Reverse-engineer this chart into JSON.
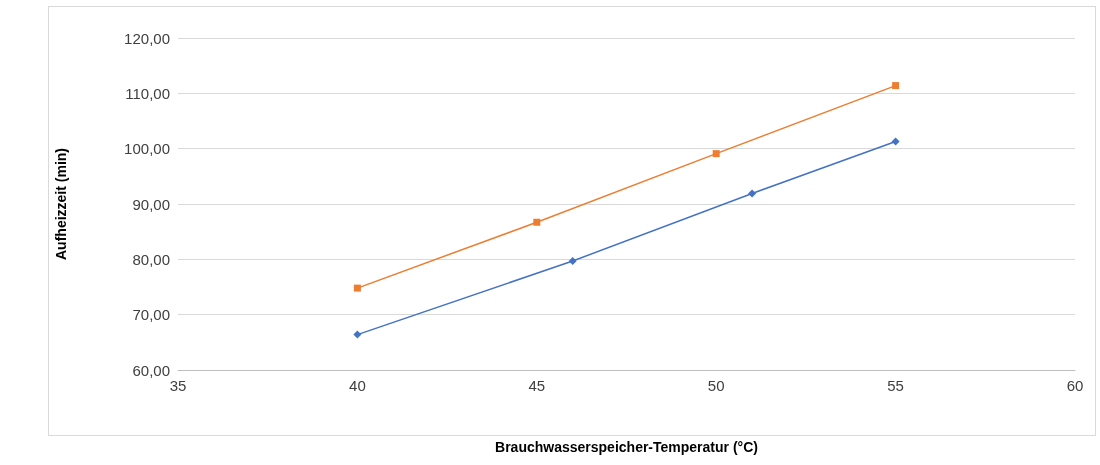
{
  "chart_data": {
    "type": "line",
    "xlabel": "Brauchwasserspeicher-Temperatur (°C)",
    "ylabel": "Aufheizzeit (min)",
    "xlim": [
      35,
      60
    ],
    "xticks": [
      35,
      40,
      45,
      50,
      55,
      60
    ],
    "ylim": [
      60,
      120
    ],
    "yticks": [
      {
        "value": 60,
        "label": "60,00"
      },
      {
        "value": 70,
        "label": "70,00"
      },
      {
        "value": 80,
        "label": "80,00"
      },
      {
        "value": 90,
        "label": "90,00"
      },
      {
        "value": 100,
        "label": "100,00"
      },
      {
        "value": 110,
        "label": "110,00"
      },
      {
        "value": 120,
        "label": "120,00"
      }
    ],
    "grid": "y",
    "series": [
      {
        "color": "#ed7d31",
        "marker": "square",
        "x": [
          40,
          45,
          50,
          55
        ],
        "values": [
          74.8,
          86.7,
          99.1,
          111.4
        ]
      },
      {
        "color": "#4472c4",
        "marker": "diamond",
        "x": [
          40,
          46,
          51,
          55
        ],
        "values": [
          66.4,
          79.7,
          91.9,
          101.3
        ]
      }
    ]
  }
}
